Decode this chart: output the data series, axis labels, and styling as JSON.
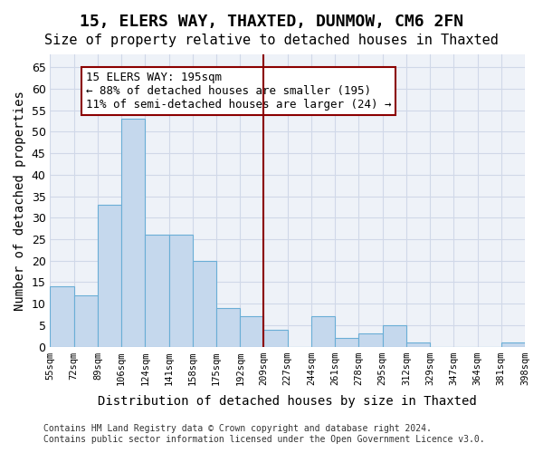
{
  "title1": "15, ELERS WAY, THAXTED, DUNMOW, CM6 2FN",
  "title2": "Size of property relative to detached houses in Thaxted",
  "xlabel": "Distribution of detached houses by size in Thaxted",
  "ylabel": "Number of detached properties",
  "bin_labels": [
    "55sqm",
    "72sqm",
    "89sqm",
    "106sqm",
    "124sqm",
    "141sqm",
    "158sqm",
    "175sqm",
    "192sqm",
    "209sqm",
    "227sqm",
    "244sqm",
    "261sqm",
    "278sqm",
    "295sqm",
    "312sqm",
    "329sqm",
    "347sqm",
    "364sqm",
    "381sqm",
    "398sqm"
  ],
  "bar_values": [
    14,
    12,
    33,
    53,
    26,
    26,
    20,
    9,
    7,
    4,
    0,
    7,
    2,
    3,
    5,
    1,
    0,
    0,
    0,
    1
  ],
  "bar_color": "#c5d8ed",
  "bar_edge_color": "#6aaed6",
  "vline_x": 8.5,
  "vline_color": "#8b0000",
  "annotation_text": "15 ELERS WAY: 195sqm\n← 88% of detached houses are smaller (195)\n11% of semi-detached houses are larger (24) →",
  "annotation_box_color": "#ffffff",
  "annotation_box_edge": "#8b0000",
  "ylim": [
    0,
    68
  ],
  "yticks": [
    0,
    5,
    10,
    15,
    20,
    25,
    30,
    35,
    40,
    45,
    50,
    55,
    60,
    65
  ],
  "grid_color": "#d0d8e8",
  "background_color": "#eef2f8",
  "footer_text": "Contains HM Land Registry data © Crown copyright and database right 2024.\nContains public sector information licensed under the Open Government Licence v3.0.",
  "title1_fontsize": 13,
  "title2_fontsize": 11,
  "xlabel_fontsize": 10,
  "ylabel_fontsize": 10,
  "annotation_fontsize": 9
}
